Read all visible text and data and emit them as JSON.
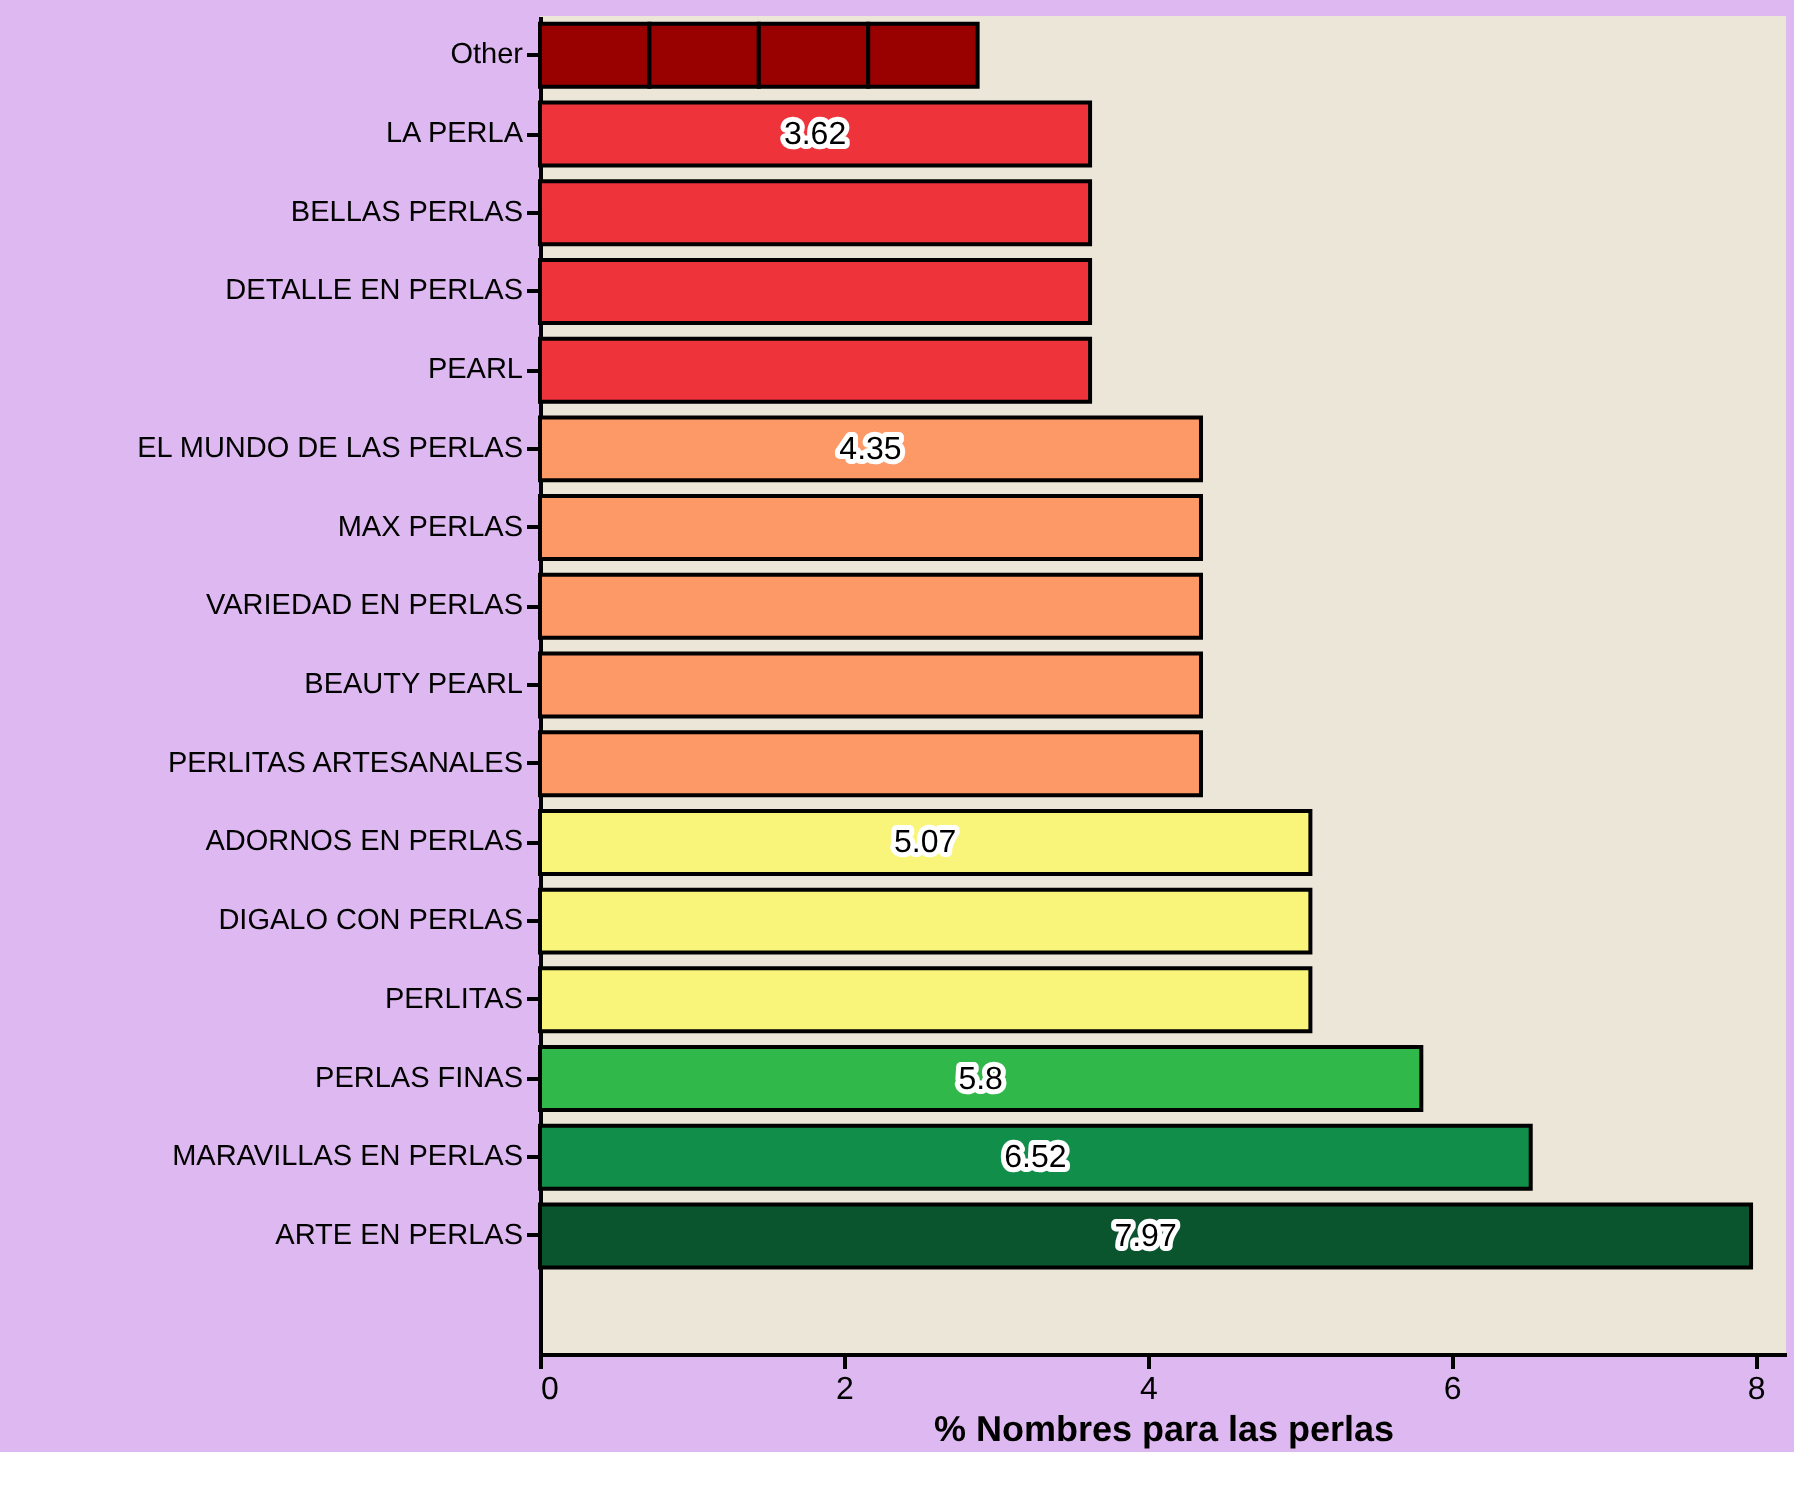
{
  "chart_data": {
    "type": "bar",
    "orientation": "horizontal",
    "stacked": true,
    "categories": [
      "Other",
      "LA PERLA",
      "BELLAS PERLAS",
      "DETALLE EN PERLAS",
      "PEARL",
      "EL MUNDO DE LAS PERLAS",
      "MAX PERLAS",
      "VARIEDAD EN PERLAS",
      "BEAUTY PEARL",
      "PERLITAS ARTESANALES",
      "ADORNOS EN PERLAS",
      "DIGALO CON PERLAS",
      "PERLITAS",
      "PERLAS FINAS",
      "MARAVILLAS EN PERLAS",
      "ARTE EN PERLAS"
    ],
    "series": [
      {
        "values": [
          0.72,
          3.62,
          3.62,
          3.62,
          3.62,
          4.35,
          4.35,
          4.35,
          4.35,
          4.35,
          5.07,
          5.07,
          5.07,
          5.8,
          6.52,
          7.97
        ],
        "colors": [
          "#990000",
          "#ee333a",
          "#ee333a",
          "#ee333a",
          "#ee333a",
          "#fd9966",
          "#fd9966",
          "#fd9966",
          "#fd9966",
          "#fd9966",
          "#f9f57a",
          "#f9f57a",
          "#f9f57a",
          "#30b84a",
          "#108e4a",
          "#0b552e"
        ],
        "value_labels": [
          null,
          "3.62",
          null,
          null,
          null,
          "4.35",
          null,
          null,
          null,
          null,
          "5.07",
          null,
          null,
          "5.8",
          "6.52",
          "7.97"
        ]
      },
      {
        "values": [
          0.72,
          null,
          null,
          null,
          null,
          null,
          null,
          null,
          null,
          null,
          null,
          null,
          null,
          null,
          null,
          null
        ],
        "color": "#990000"
      },
      {
        "values": [
          0.72,
          null,
          null,
          null,
          null,
          null,
          null,
          null,
          null,
          null,
          null,
          null,
          null,
          null,
          null,
          null
        ],
        "color": "#990000"
      },
      {
        "values": [
          0.72,
          null,
          null,
          null,
          null,
          null,
          null,
          null,
          null,
          null,
          null,
          null,
          null,
          null,
          null,
          null
        ],
        "color": "#990000"
      }
    ],
    "xlim": [
      0,
      8.2
    ],
    "xticks": [
      0,
      2,
      4,
      6,
      8
    ],
    "xlabel": "% Nombres para las perlas"
  }
}
